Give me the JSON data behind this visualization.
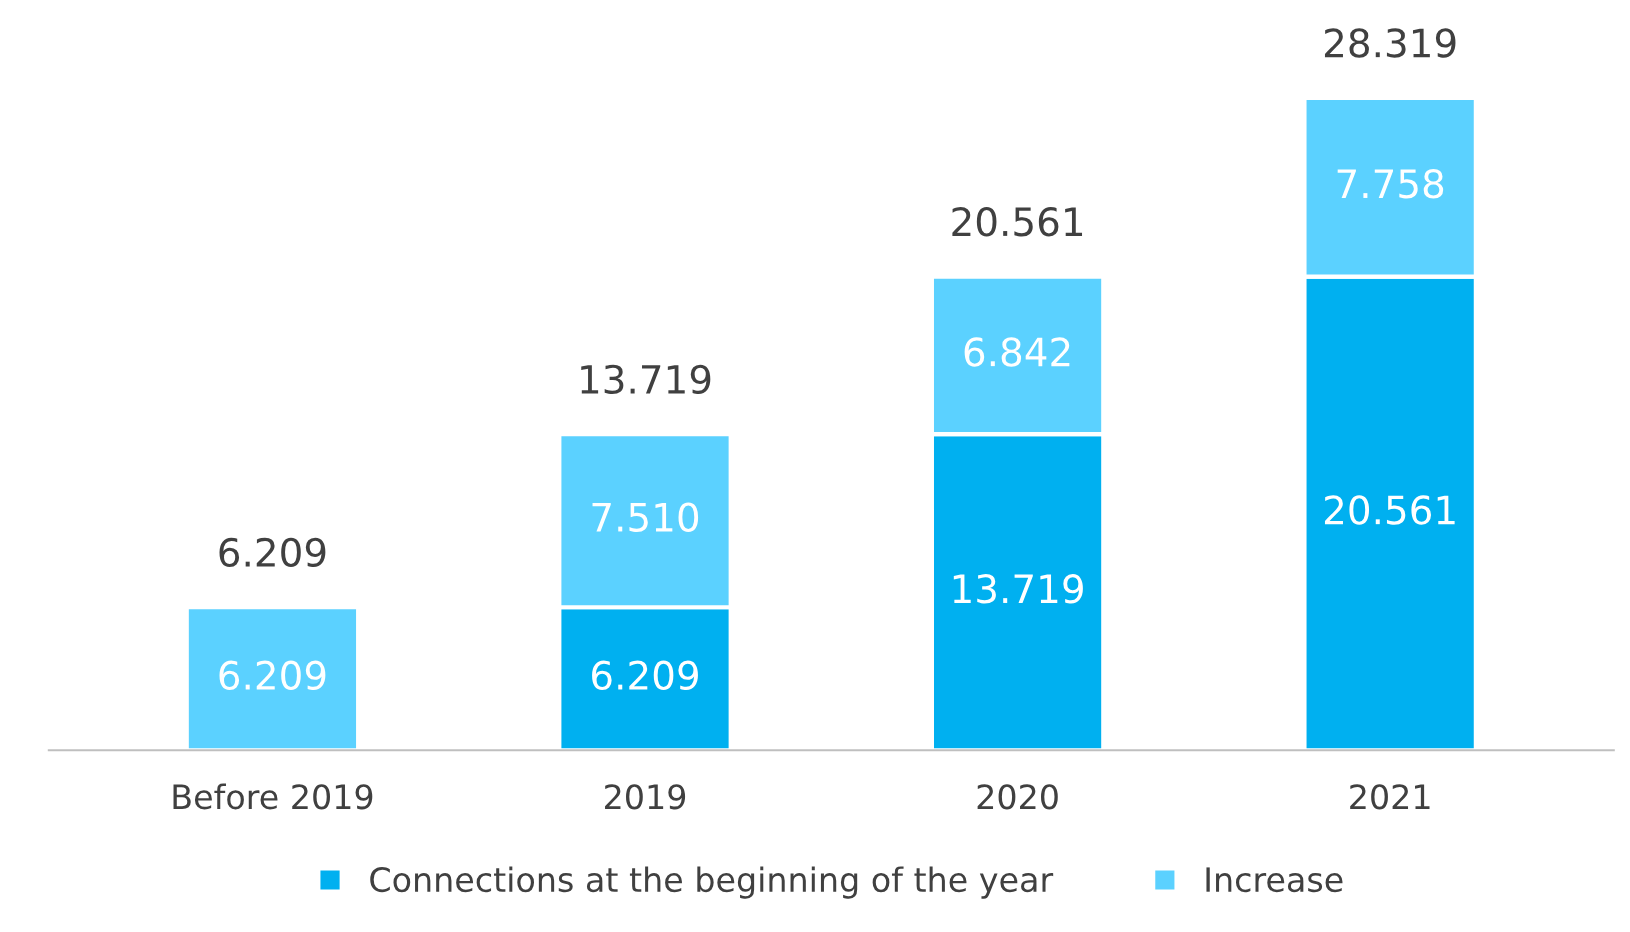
{
  "chart_data": {
    "type": "bar",
    "stacked": true,
    "categories": [
      "Before 2019",
      "2019",
      "2020",
      "2021"
    ],
    "series": [
      {
        "name": "Connections at the beginning of the year",
        "color": "#00b0f0",
        "values": [
          null,
          6.209,
          13.719,
          20.561
        ],
        "value_labels": [
          null,
          "6.209",
          "13.719",
          "20.561"
        ]
      },
      {
        "name": "Increase",
        "color": "#5bd1ff",
        "values": [
          6.209,
          7.51,
          6.842,
          7.758
        ],
        "value_labels": [
          "6.209",
          "7.510",
          "6.842",
          "7.758"
        ]
      }
    ],
    "totals": [
      "6.209",
      "13.719",
      "20.561",
      "28.319"
    ],
    "legend": "bottom",
    "grid": false
  }
}
